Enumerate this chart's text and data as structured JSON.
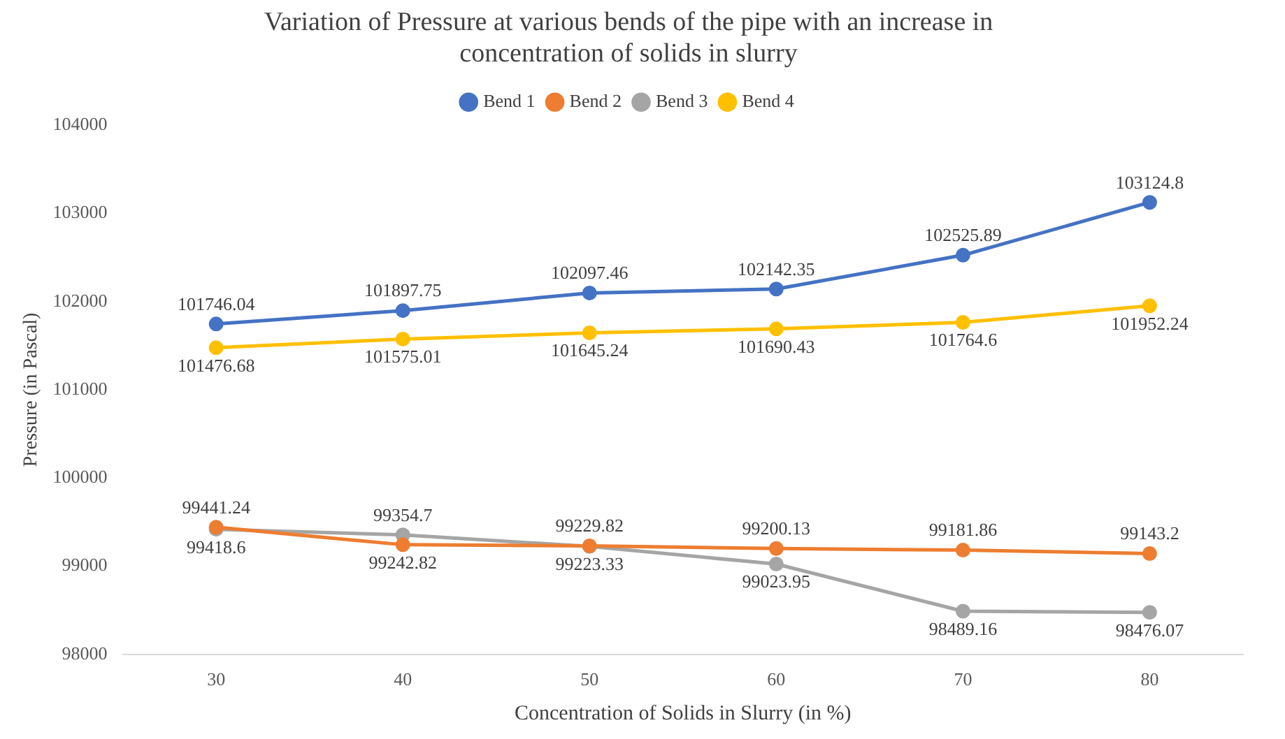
{
  "chart_data": {
    "type": "line",
    "title": "Variation of Pressure at various bends of the pipe with an increase in concentration of solids in slurry",
    "xlabel": "Concentration of Solids in Slurry (in %)",
    "ylabel": "Pressure (in Pascal)",
    "categories": [
      "30",
      "40",
      "50",
      "60",
      "70",
      "80"
    ],
    "series": [
      {
        "name": "Bend 1",
        "color": "#4472c4",
        "values": [
          101746.04,
          101897.75,
          102097.46,
          102142.35,
          102525.89,
          103124.8
        ]
      },
      {
        "name": "Bend 2",
        "color": "#ed7d31",
        "values": [
          99441.24,
          99242.82,
          99229.82,
          99200.13,
          99181.86,
          99143.2
        ]
      },
      {
        "name": "Bend 3",
        "color": "#a5a5a5",
        "values": [
          99418.6,
          99354.7,
          99223.33,
          99023.95,
          98489.16,
          98476.07
        ]
      },
      {
        "name": "Bend 4",
        "color": "#ffc000",
        "values": [
          101476.68,
          101575.01,
          101645.24,
          101690.43,
          101764.6,
          101952.24
        ]
      }
    ],
    "ylim": [
      98000,
      104000
    ],
    "yticks": [
      98000,
      99000,
      100000,
      101000,
      102000,
      103000,
      104000
    ],
    "legend": "top",
    "marker": "circle",
    "line_style": "solid",
    "data_labels": true
  }
}
